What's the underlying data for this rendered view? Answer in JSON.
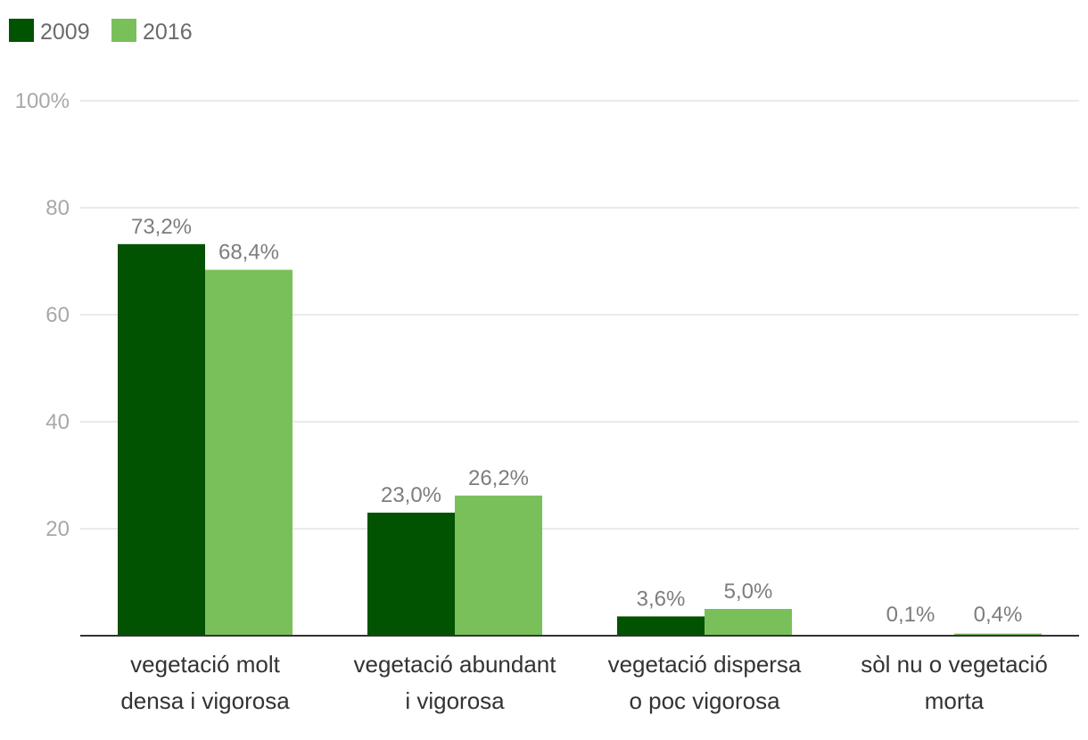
{
  "chart_data": {
    "type": "bar",
    "categories": [
      [
        "vegetació molt",
        "densa i vigorosa"
      ],
      [
        "vegetació abundant",
        "i vigorosa"
      ],
      [
        "vegetació dispersa",
        "o poc vigorosa"
      ],
      [
        "sòl nu o vegetació",
        "morta"
      ]
    ],
    "series": [
      {
        "name": "2009",
        "color": "#015201",
        "values": [
          73.2,
          23.0,
          3.6,
          0.1
        ],
        "labels": [
          "73,2%",
          "23,0%",
          "3,6%",
          "0,1%"
        ]
      },
      {
        "name": "2016",
        "color": "#7ac05a",
        "values": [
          68.4,
          26.2,
          5.0,
          0.4
        ],
        "labels": [
          "68,4%",
          "26,2%",
          "5,0%",
          "0,4%"
        ]
      }
    ],
    "y_ticks": [
      {
        "value": 20,
        "label": "20"
      },
      {
        "value": 40,
        "label": "40"
      },
      {
        "value": 60,
        "label": "60"
      },
      {
        "value": 80,
        "label": "80"
      },
      {
        "value": 100,
        "label": "100%"
      }
    ],
    "ylim": [
      0,
      100
    ],
    "grid": true,
    "legend_position": "top-left",
    "title": "",
    "xlabel": "",
    "ylabel": ""
  }
}
